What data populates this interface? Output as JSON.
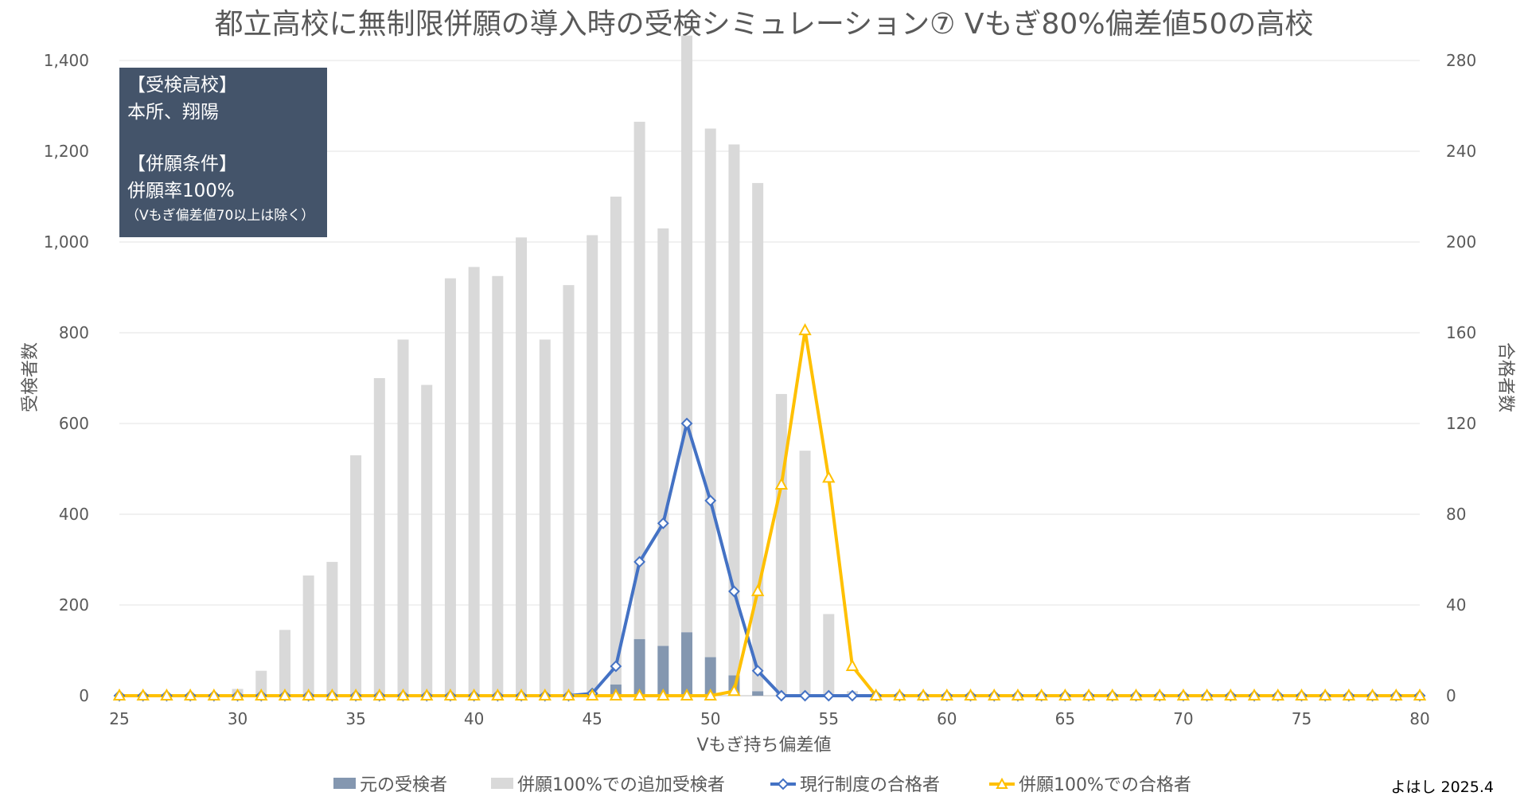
{
  "chart_data": {
    "type": "bar",
    "title": "都立高校に無制限併願の導入時の受検シミュレーション⑦ Vもぎ80%偏差値50の高校",
    "xlabel": "Vもぎ持ち偏差値",
    "ylabel": "受検者数",
    "y2label": "合格者数",
    "xlim": [
      25,
      80
    ],
    "ylim": [
      0,
      1400
    ],
    "y2lim": [
      0,
      280
    ],
    "x_ticks": [
      "25",
      "30",
      "35",
      "40",
      "45",
      "50",
      "55",
      "60",
      "65",
      "70",
      "75",
      "80"
    ],
    "y_ticks": [
      "0",
      "200",
      "400",
      "600",
      "800",
      "1,000",
      "1,200",
      "1,400"
    ],
    "y2_ticks": [
      "0",
      "40",
      "80",
      "120",
      "160",
      "200",
      "240",
      "280"
    ],
    "grid": true,
    "legend_position": "bottom",
    "x": [
      25,
      26,
      27,
      28,
      29,
      30,
      31,
      32,
      33,
      34,
      35,
      36,
      37,
      38,
      39,
      40,
      41,
      42,
      43,
      44,
      45,
      46,
      47,
      48,
      49,
      50,
      51,
      52,
      53,
      54,
      55,
      56,
      57,
      58,
      59,
      60,
      61,
      62,
      63,
      64,
      65,
      66,
      67,
      68,
      69,
      70,
      71,
      72,
      73,
      74,
      75,
      76,
      77,
      78,
      79,
      80
    ],
    "series": [
      {
        "name": "元の受検者",
        "type": "bar",
        "axis": "left",
        "color": "#8497b0",
        "values": [
          0,
          0,
          0,
          0,
          0,
          0,
          0,
          0,
          0,
          0,
          0,
          0,
          0,
          0,
          0,
          0,
          0,
          0,
          0,
          0,
          5,
          25,
          125,
          110,
          140,
          85,
          45,
          10,
          0,
          0,
          0,
          0,
          0,
          0,
          0,
          0,
          0,
          0,
          0,
          0,
          0,
          0,
          0,
          0,
          0,
          0,
          0,
          0,
          0,
          0,
          0,
          0,
          0,
          0,
          0,
          0
        ]
      },
      {
        "name": "併願100%での追加受検者",
        "type": "bar",
        "axis": "left",
        "color": "#d9d9d9",
        "values": [
          0,
          0,
          0,
          0,
          0,
          15,
          55,
          145,
          265,
          295,
          530,
          700,
          785,
          685,
          920,
          945,
          925,
          1010,
          785,
          905,
          1010,
          1075,
          1140,
          920,
          1315,
          1165,
          1170,
          1120,
          665,
          540,
          180,
          10,
          0,
          0,
          0,
          0,
          0,
          0,
          0,
          0,
          0,
          0,
          0,
          0,
          0,
          0,
          0,
          0,
          0,
          0,
          0,
          0,
          0,
          0,
          0,
          0
        ]
      },
      {
        "name": "現行制度の合格者",
        "type": "line",
        "axis": "right",
        "color": "#4472c4",
        "marker": "diamond",
        "values": [
          0,
          0,
          0,
          0,
          0,
          0,
          0,
          0,
          0,
          0,
          0,
          0,
          0,
          0,
          0,
          0,
          0,
          0,
          0,
          0,
          1,
          13,
          59,
          76,
          120,
          86,
          46,
          11,
          0,
          0,
          0,
          0,
          0,
          0,
          0,
          0,
          0,
          0,
          0,
          0,
          0,
          0,
          0,
          0,
          0,
          0,
          0,
          0,
          0,
          0,
          0,
          0,
          0,
          0,
          0,
          0
        ]
      },
      {
        "name": "併願100%での合格者",
        "type": "line",
        "axis": "right",
        "color": "#ffc000",
        "marker": "triangle",
        "values": [
          0,
          0,
          0,
          0,
          0,
          0,
          0,
          0,
          0,
          0,
          0,
          0,
          0,
          0,
          0,
          0,
          0,
          0,
          0,
          0,
          0,
          0,
          0,
          0,
          0,
          0,
          2,
          46,
          93,
          161,
          96,
          13,
          0,
          0,
          0,
          0,
          0,
          0,
          0,
          0,
          0,
          0,
          0,
          0,
          0,
          0,
          0,
          0,
          0,
          0,
          0,
          0,
          0,
          0,
          0,
          0
        ]
      }
    ]
  },
  "info_box": {
    "heading1": "【受検高校】",
    "line1": "本所、翔陽",
    "heading2": "【併願条件】",
    "line2": "併願率100%",
    "note": "（Vもぎ偏差値70以上は除く）",
    "bg_color": "#44546a"
  },
  "credit": "よはし 2025.4"
}
